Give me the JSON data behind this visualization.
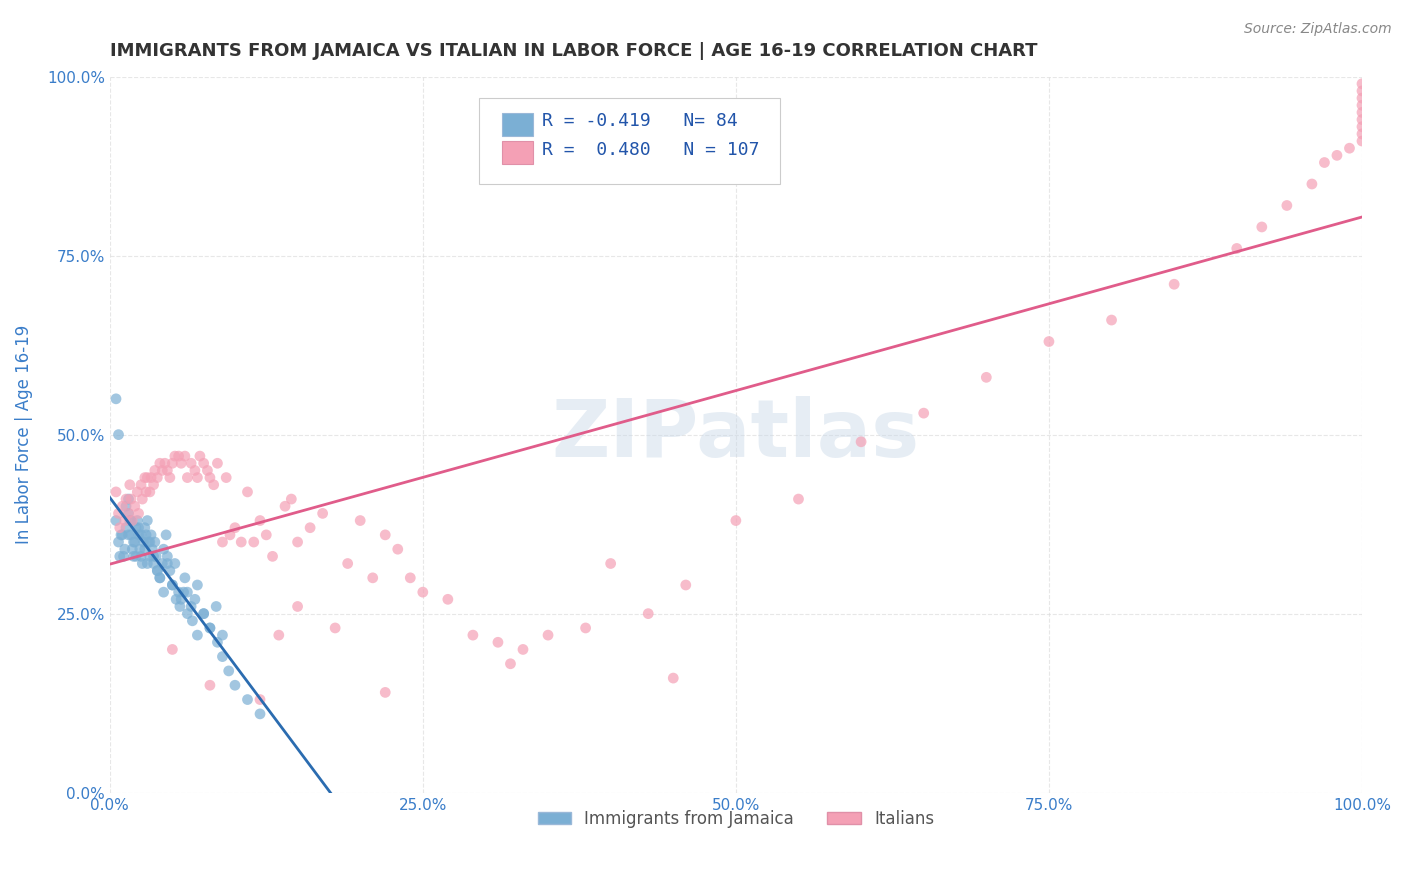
{
  "title": "IMMIGRANTS FROM JAMAICA VS ITALIAN IN LABOR FORCE | AGE 16-19 CORRELATION CHART",
  "source": "Source: ZipAtlas.com",
  "xlabel": "",
  "ylabel": "In Labor Force | Age 16-19",
  "xlim": [
    0.0,
    1.0
  ],
  "ylim": [
    0.0,
    1.0
  ],
  "xticks": [
    0.0,
    0.25,
    0.5,
    0.75,
    1.0
  ],
  "yticks": [
    0.0,
    0.25,
    0.5,
    0.75,
    1.0
  ],
  "xticklabels": [
    "0.0%",
    "25.0%",
    "50.0%",
    "75.0%",
    "100.0%"
  ],
  "yticklabels": [
    "0.0%",
    "25.0%",
    "50.0%",
    "75.0%",
    "100.0%"
  ],
  "jamaica_color": "#7bafd4",
  "italian_color": "#f4a0b5",
  "jamaica_line_color": "#2b6cb0",
  "italian_line_color": "#e05c8a",
  "dashed_line_color": "#b0c4de",
  "watermark": "ZIPatlas",
  "legend_jamaica_R": "-0.419",
  "legend_jamaica_N": "84",
  "legend_italian_R": "0.480",
  "legend_italian_N": "107",
  "jamaica_R": -0.419,
  "italian_R": 0.48,
  "jamaica_N": 84,
  "italian_N": 107,
  "jamaica_x": [
    0.005,
    0.007,
    0.008,
    0.01,
    0.012,
    0.013,
    0.015,
    0.015,
    0.016,
    0.017,
    0.018,
    0.019,
    0.02,
    0.021,
    0.022,
    0.023,
    0.024,
    0.025,
    0.026,
    0.027,
    0.028,
    0.029,
    0.03,
    0.031,
    0.032,
    0.033,
    0.034,
    0.035,
    0.036,
    0.037,
    0.038,
    0.04,
    0.042,
    0.043,
    0.045,
    0.046,
    0.048,
    0.05,
    0.052,
    0.055,
    0.057,
    0.06,
    0.062,
    0.065,
    0.068,
    0.07,
    0.075,
    0.08,
    0.085,
    0.09,
    0.005,
    0.007,
    0.009,
    0.011,
    0.013,
    0.015,
    0.017,
    0.019,
    0.021,
    0.023,
    0.025,
    0.028,
    0.03,
    0.032,
    0.035,
    0.038,
    0.04,
    0.043,
    0.046,
    0.05,
    0.053,
    0.056,
    0.059,
    0.062,
    0.066,
    0.07,
    0.075,
    0.08,
    0.086,
    0.09,
    0.095,
    0.1,
    0.11,
    0.12
  ],
  "jamaica_y": [
    0.38,
    0.35,
    0.33,
    0.36,
    0.34,
    0.37,
    0.39,
    0.41,
    0.38,
    0.36,
    0.34,
    0.33,
    0.35,
    0.37,
    0.38,
    0.36,
    0.34,
    0.33,
    0.32,
    0.35,
    0.37,
    0.36,
    0.38,
    0.35,
    0.33,
    0.36,
    0.34,
    0.32,
    0.35,
    0.33,
    0.31,
    0.3,
    0.32,
    0.34,
    0.36,
    0.33,
    0.31,
    0.29,
    0.32,
    0.28,
    0.27,
    0.3,
    0.28,
    0.26,
    0.27,
    0.29,
    0.25,
    0.23,
    0.26,
    0.22,
    0.55,
    0.5,
    0.36,
    0.33,
    0.4,
    0.36,
    0.38,
    0.35,
    0.33,
    0.37,
    0.36,
    0.34,
    0.32,
    0.35,
    0.33,
    0.31,
    0.3,
    0.28,
    0.32,
    0.29,
    0.27,
    0.26,
    0.28,
    0.25,
    0.24,
    0.22,
    0.25,
    0.23,
    0.21,
    0.19,
    0.17,
    0.15,
    0.13,
    0.11
  ],
  "italian_x": [
    0.005,
    0.007,
    0.008,
    0.01,
    0.012,
    0.013,
    0.015,
    0.016,
    0.017,
    0.018,
    0.02,
    0.022,
    0.023,
    0.025,
    0.026,
    0.028,
    0.029,
    0.03,
    0.032,
    0.033,
    0.035,
    0.036,
    0.038,
    0.04,
    0.042,
    0.044,
    0.046,
    0.048,
    0.05,
    0.052,
    0.055,
    0.057,
    0.06,
    0.062,
    0.065,
    0.068,
    0.07,
    0.072,
    0.075,
    0.078,
    0.08,
    0.083,
    0.086,
    0.09,
    0.093,
    0.096,
    0.1,
    0.105,
    0.11,
    0.115,
    0.12,
    0.125,
    0.13,
    0.135,
    0.14,
    0.145,
    0.15,
    0.16,
    0.17,
    0.18,
    0.19,
    0.2,
    0.21,
    0.22,
    0.23,
    0.24,
    0.25,
    0.27,
    0.29,
    0.31,
    0.33,
    0.35,
    0.38,
    0.4,
    0.43,
    0.46,
    0.5,
    0.55,
    0.6,
    0.65,
    0.7,
    0.75,
    0.8,
    0.85,
    0.9,
    0.92,
    0.94,
    0.96,
    0.97,
    0.98,
    0.99,
    1.0,
    1.0,
    1.0,
    1.0,
    1.0,
    1.0,
    1.0,
    1.0,
    1.0,
    0.05,
    0.08,
    0.12,
    0.15,
    0.22,
    0.32,
    0.45
  ],
  "italian_y": [
    0.42,
    0.39,
    0.37,
    0.4,
    0.38,
    0.41,
    0.39,
    0.43,
    0.41,
    0.38,
    0.4,
    0.42,
    0.39,
    0.43,
    0.41,
    0.44,
    0.42,
    0.44,
    0.42,
    0.44,
    0.43,
    0.45,
    0.44,
    0.46,
    0.45,
    0.46,
    0.45,
    0.44,
    0.46,
    0.47,
    0.47,
    0.46,
    0.47,
    0.44,
    0.46,
    0.45,
    0.44,
    0.47,
    0.46,
    0.45,
    0.44,
    0.43,
    0.46,
    0.35,
    0.44,
    0.36,
    0.37,
    0.35,
    0.42,
    0.35,
    0.38,
    0.36,
    0.33,
    0.22,
    0.4,
    0.41,
    0.35,
    0.37,
    0.39,
    0.23,
    0.32,
    0.38,
    0.3,
    0.36,
    0.34,
    0.3,
    0.28,
    0.27,
    0.22,
    0.21,
    0.2,
    0.22,
    0.23,
    0.32,
    0.25,
    0.29,
    0.38,
    0.41,
    0.49,
    0.53,
    0.58,
    0.63,
    0.66,
    0.71,
    0.76,
    0.79,
    0.82,
    0.85,
    0.88,
    0.89,
    0.9,
    0.91,
    0.92,
    0.93,
    0.94,
    0.95,
    0.96,
    0.97,
    0.98,
    0.99,
    0.2,
    0.15,
    0.13,
    0.26,
    0.14,
    0.18,
    0.16
  ],
  "background_color": "#ffffff",
  "grid_color": "#dddddd",
  "title_color": "#333333",
  "axis_label_color": "#3a7dc9",
  "tick_color": "#3a7dc9"
}
